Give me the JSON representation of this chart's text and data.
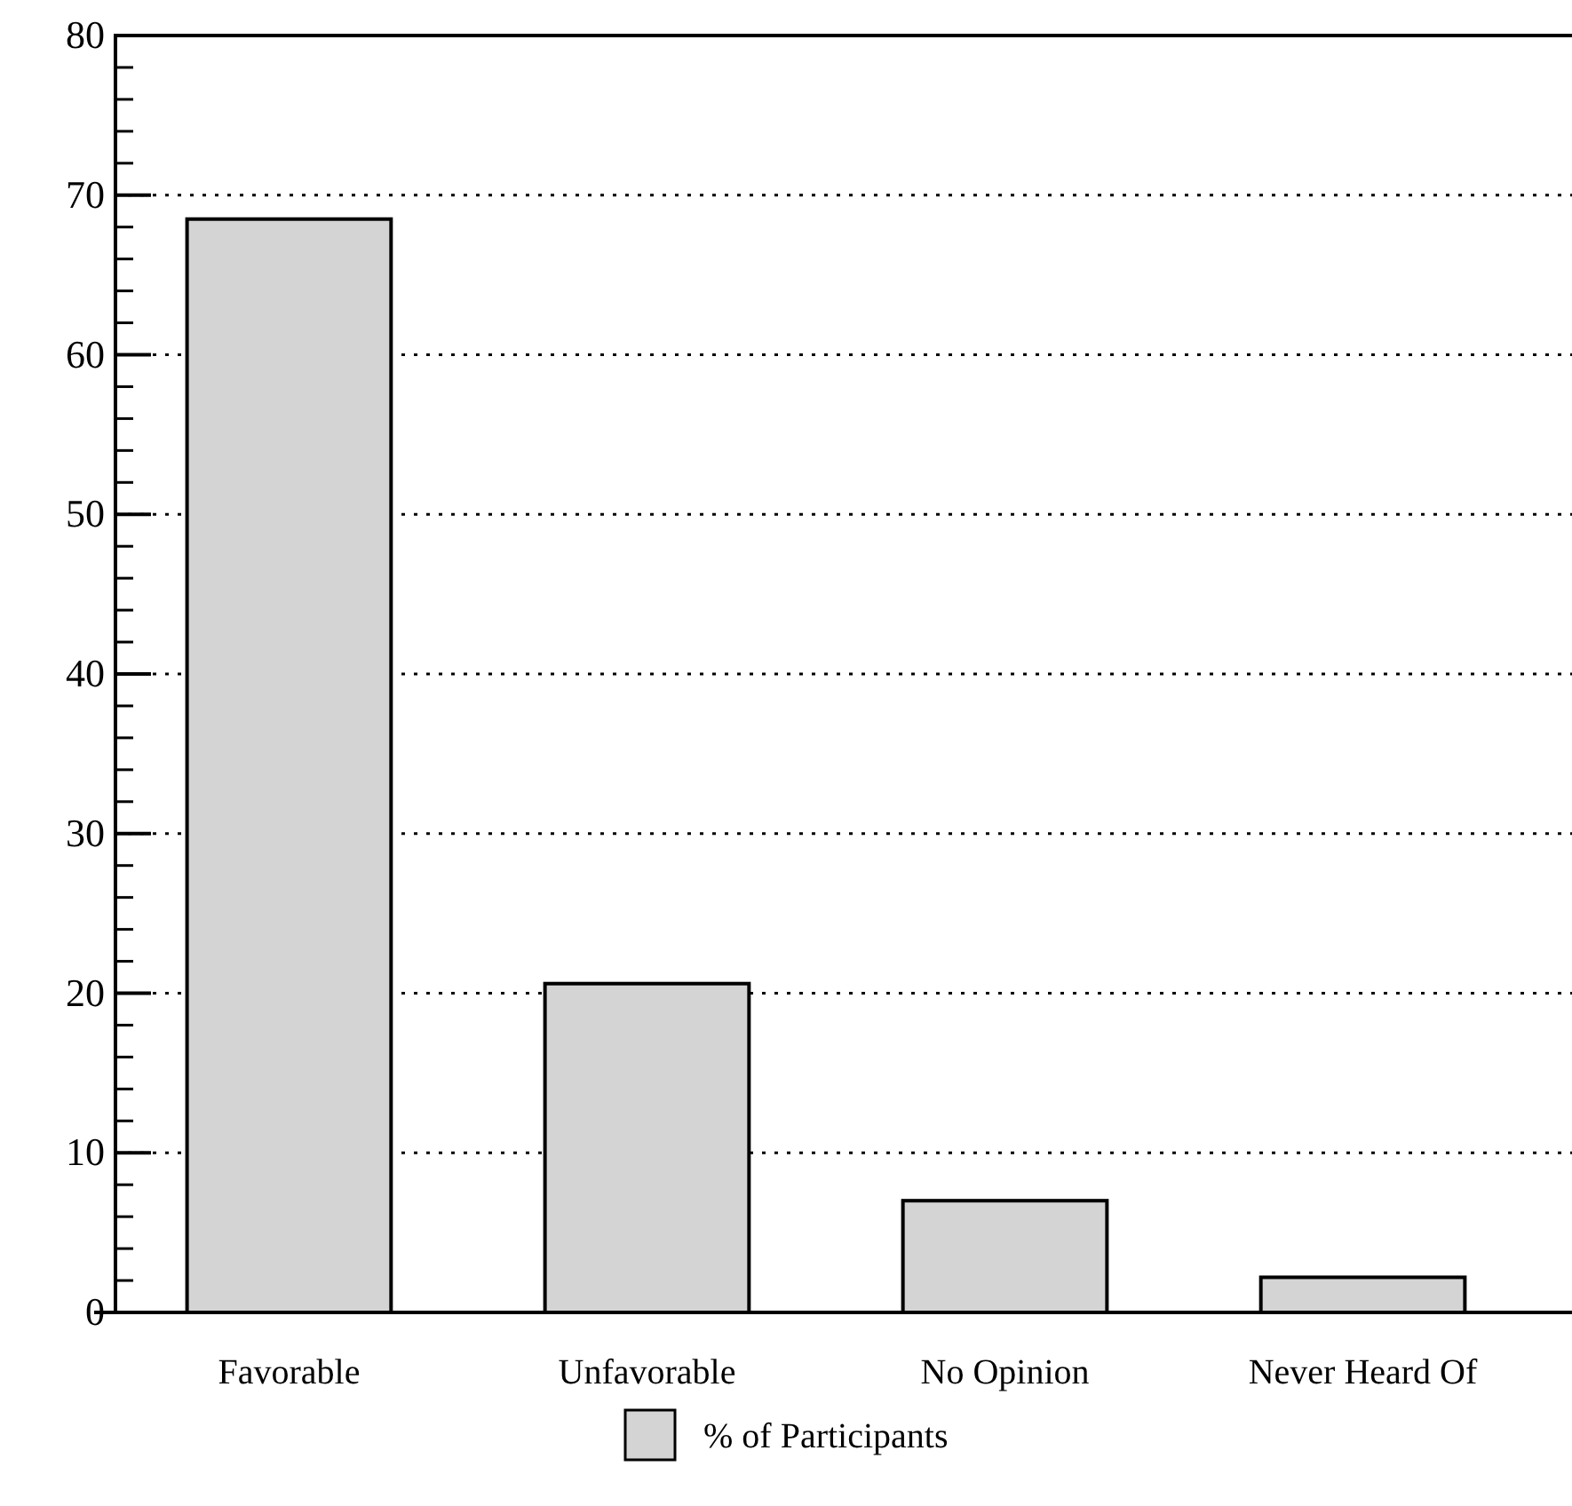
{
  "chart_data": {
    "type": "bar",
    "categories": [
      "Favorable",
      "Unfavorable",
      "No Opinion",
      "Never Heard Of"
    ],
    "series": [
      {
        "name": "% of Participants",
        "color": "#d4d4d4",
        "values": [
          68.5,
          20.6,
          7,
          2.2
        ]
      }
    ],
    "ylim": [
      0,
      80
    ],
    "yticks": [
      0,
      10,
      20,
      30,
      40,
      50,
      60,
      70,
      80
    ],
    "grid": "y",
    "legend": "bottom"
  }
}
